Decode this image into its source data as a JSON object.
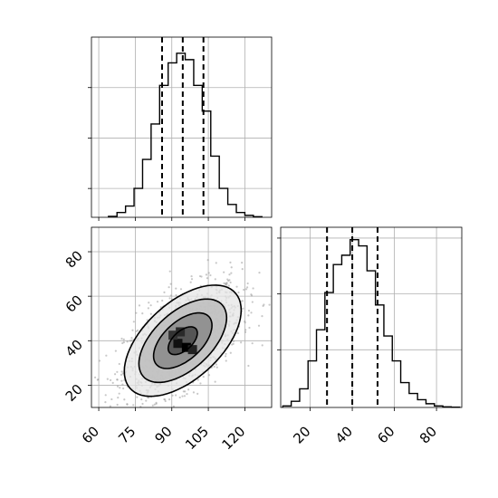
{
  "chart_data": [
    {
      "type": "histogram",
      "panel": "top-left",
      "variable": "x",
      "xlim": [
        57,
        131
      ],
      "grid": true,
      "bin_edges": [
        64,
        67.5,
        71,
        74.5,
        78,
        81.5,
        85,
        88.5,
        92,
        95.5,
        99,
        102.5,
        106,
        109.5,
        113,
        116.5,
        120,
        123.5,
        127
      ],
      "counts": [
        0.3,
        1.5,
        3.5,
        9,
        18,
        29,
        41,
        48,
        51,
        49,
        41,
        33,
        19,
        9,
        4,
        1.5,
        0.6,
        0.2
      ],
      "ymax": 56,
      "quantiles": [
        86,
        94.5,
        103
      ]
    },
    {
      "type": "histogram",
      "panel": "bottom-right",
      "variable": "y",
      "xlim": [
        6,
        92
      ],
      "x_ticks": [
        20,
        40,
        60,
        80
      ],
      "x_tick_labels": [
        "20",
        "40",
        "60",
        "80"
      ],
      "grid": true,
      "bin_edges": [
        7,
        11,
        15,
        19,
        23,
        27,
        31,
        35,
        39,
        43,
        47,
        51,
        55,
        59,
        63,
        67,
        71,
        75,
        79,
        83,
        87,
        91
      ],
      "counts": [
        0.5,
        2,
        6,
        15,
        25,
        37,
        46,
        49,
        54,
        52,
        44,
        33,
        23,
        15,
        8,
        4.5,
        2.5,
        1.2,
        0.5,
        0.2,
        0.1
      ],
      "ymax": 58,
      "quantiles": [
        28,
        40,
        52
      ]
    },
    {
      "type": "scatter-contour",
      "panel": "bottom-left",
      "xlim": [
        57,
        131
      ],
      "ylim": [
        10,
        91
      ],
      "x_ticks": [
        60,
        75,
        90,
        105,
        120
      ],
      "x_tick_labels": [
        "60",
        "75",
        "90",
        "105",
        "120"
      ],
      "y_ticks": [
        20,
        40,
        60,
        80
      ],
      "y_tick_labels": [
        "20",
        "40",
        "60",
        "80"
      ],
      "grid": true,
      "center": [
        94.5,
        40
      ],
      "sd": [
        12,
        12.5
      ],
      "correlation": 0.55,
      "contour_levels_sigma": [
        0.5,
        1.0,
        1.5,
        2.0
      ]
    }
  ]
}
